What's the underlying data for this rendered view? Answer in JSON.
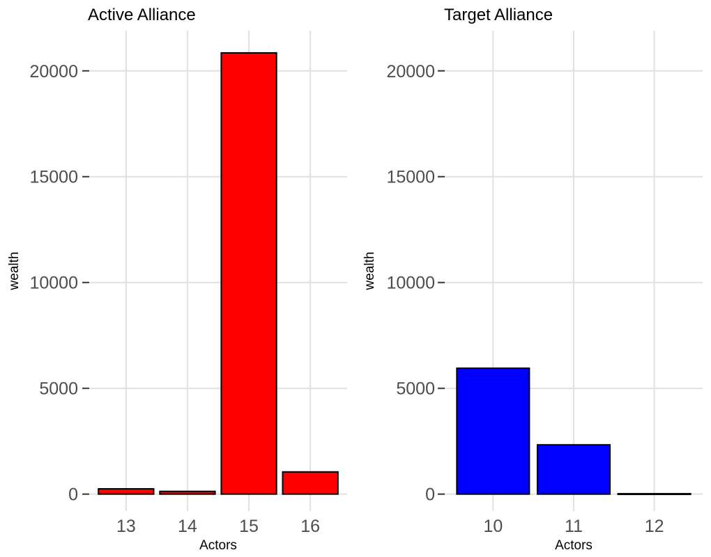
{
  "chart_data": [
    {
      "type": "bar",
      "title": "Active Alliance",
      "xlabel": "Actors",
      "ylabel": "wealth",
      "categories": [
        "13",
        "14",
        "15",
        "16"
      ],
      "values": [
        250,
        130,
        20850,
        1050
      ],
      "ylim": [
        -800,
        21900
      ],
      "yticks": [
        0,
        5000,
        10000,
        15000,
        20000
      ],
      "fill_color": "#ff0000",
      "grid": true,
      "legend": "none"
    },
    {
      "type": "bar",
      "title": "Target Alliance",
      "xlabel": "Actors",
      "ylabel": "wealth",
      "categories": [
        "10",
        "11",
        "12"
      ],
      "values": [
        5950,
        2330,
        20
      ],
      "ylim": [
        -800,
        21900
      ],
      "yticks": [
        0,
        5000,
        10000,
        15000,
        20000
      ],
      "fill_color": "#0000ff",
      "grid": true,
      "legend": "none"
    }
  ]
}
